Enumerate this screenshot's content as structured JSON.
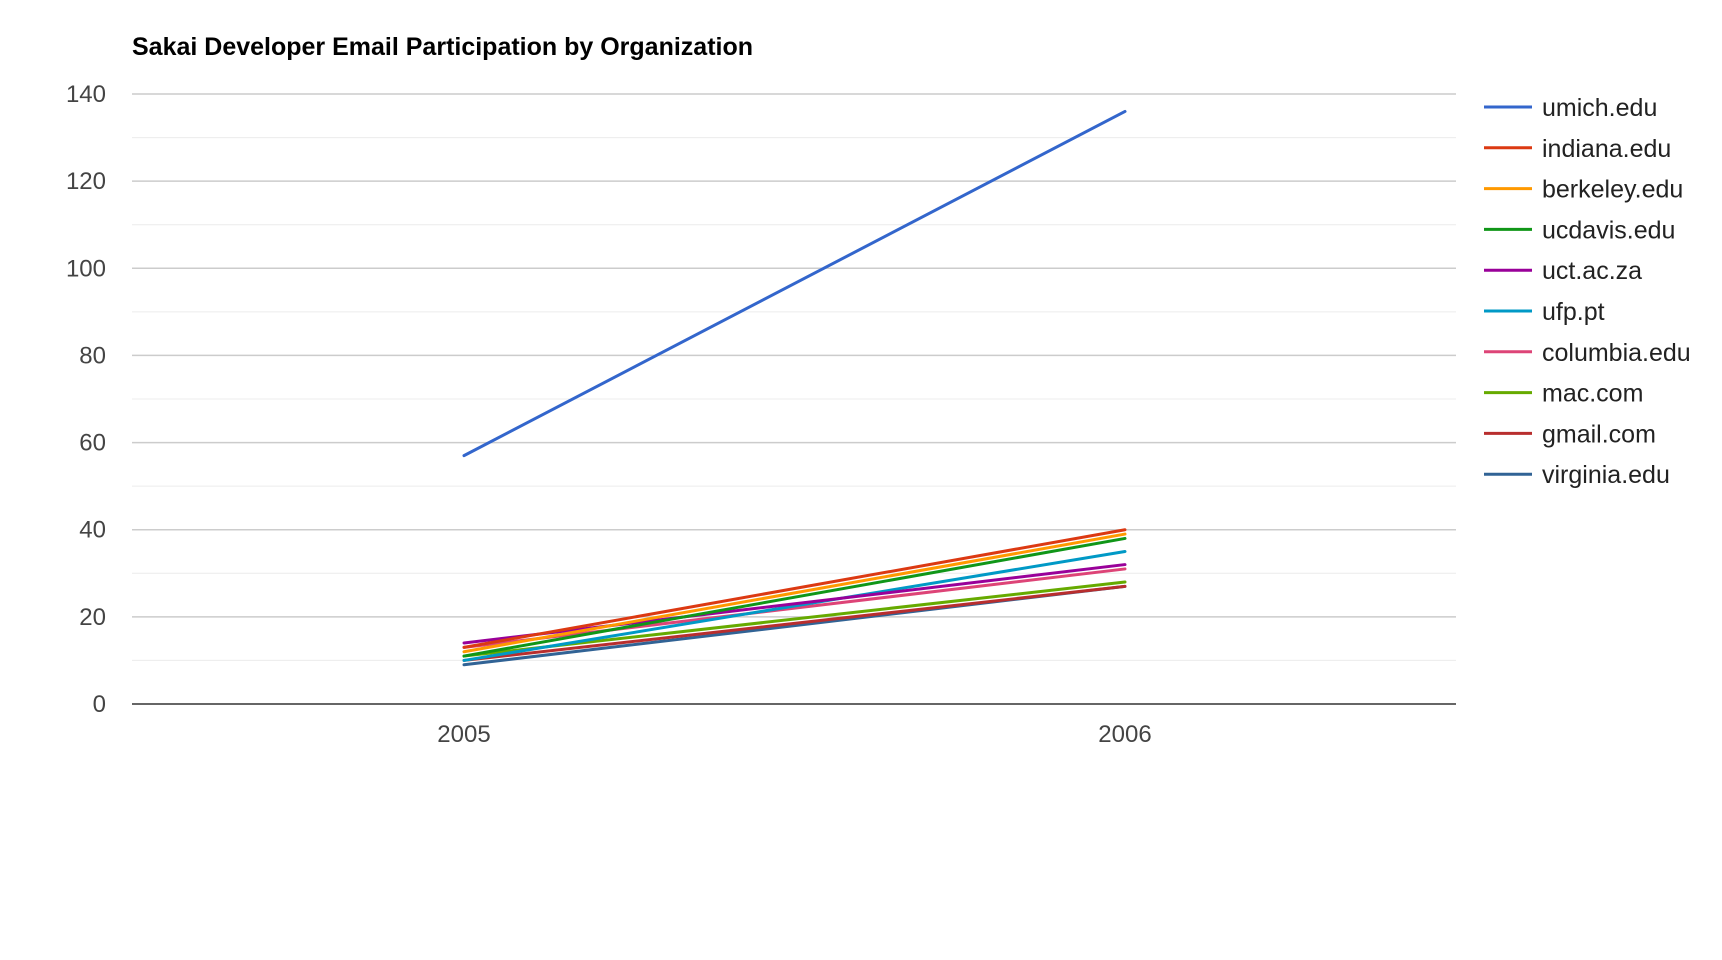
{
  "chart_data": {
    "type": "line",
    "title": "Sakai Developer Email Participation by Organization",
    "xlabel": "",
    "ylabel": "",
    "categories": [
      "2005",
      "2006"
    ],
    "ylim": [
      0,
      140
    ],
    "yticks": [
      0,
      20,
      40,
      60,
      80,
      100,
      120,
      140
    ],
    "grid": true,
    "legend": "right",
    "series": [
      {
        "name": "umich.edu",
        "color": "#3366cc",
        "values": [
          57,
          136
        ]
      },
      {
        "name": "indiana.edu",
        "color": "#dc3912",
        "values": [
          13,
          40
        ]
      },
      {
        "name": "berkeley.edu",
        "color": "#ff9900",
        "values": [
          12,
          39
        ]
      },
      {
        "name": "ucdavis.edu",
        "color": "#109618",
        "values": [
          11,
          38
        ]
      },
      {
        "name": "uct.ac.za",
        "color": "#990099",
        "values": [
          14,
          32
        ]
      },
      {
        "name": "ufp.pt",
        "color": "#0099c6",
        "values": [
          10,
          35
        ]
      },
      {
        "name": "columbia.edu",
        "color": "#dd4477",
        "values": [
          13,
          31
        ]
      },
      {
        "name": "mac.com",
        "color": "#66aa00",
        "values": [
          11,
          28
        ]
      },
      {
        "name": "gmail.com",
        "color": "#b82e2e",
        "values": [
          10,
          27
        ]
      },
      {
        "name": "virginia.edu",
        "color": "#316395",
        "values": [
          9,
          27
        ]
      }
    ]
  }
}
